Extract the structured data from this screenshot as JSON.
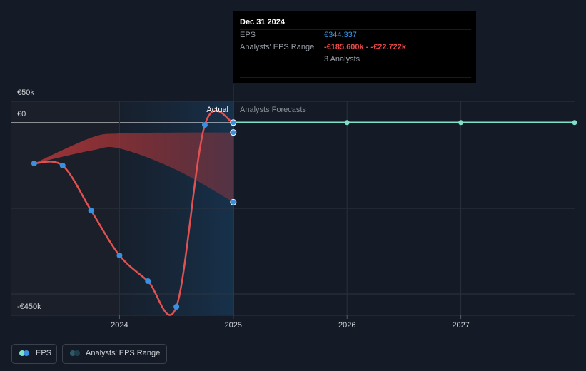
{
  "chart_data": {
    "type": "line",
    "tooltip": {
      "date": "Dec 31 2024",
      "eps_label": "EPS",
      "eps_value": "€344.337",
      "range_label": "Analysts' EPS Range",
      "range_value": "-€185.600k - -€22.722k",
      "analysts": "3 Analysts"
    },
    "actual_label": "Actual",
    "forecast_label": "Analysts Forecasts",
    "xlim": [
      2023.05,
      2028
    ],
    "xticks": [
      2024,
      2025,
      2026,
      2027
    ],
    "ylim": [
      -450000,
      50000
    ],
    "yticks": [
      {
        "value": 50000,
        "label": "€50k"
      },
      {
        "value": 0,
        "label": "€0"
      },
      {
        "value": -450000,
        "label": "-€450k"
      }
    ],
    "ygrid": [
      -200000,
      -400000
    ],
    "series": [
      {
        "name": "EPS",
        "color": "#e05252",
        "marker_color": "#3b8fe0",
        "x": [
          2023.25,
          2023.5,
          2023.75,
          2024.0,
          2024.25,
          2024.5,
          2024.75,
          2025.0
        ],
        "values": [
          -95000,
          -100000,
          -205000,
          -310000,
          -370000,
          -430000,
          -5000,
          344.337
        ]
      },
      {
        "color": "#7fe0c8",
        "x": [
          2025.0,
          2026.0,
          2027.0,
          2028.0
        ],
        "values": [
          344.337,
          400,
          400,
          400
        ]
      }
    ],
    "range": {
      "name": "Analysts' EPS Range",
      "color": "#c0393b",
      "x": [
        2023.25,
        2023.75,
        2024.0,
        2024.5,
        2025.0
      ],
      "high": [
        -95000,
        -35000,
        -25000,
        -23000,
        -22722
      ],
      "low": [
        -95000,
        -65000,
        -60000,
        -110000,
        -185600
      ]
    }
  }
}
